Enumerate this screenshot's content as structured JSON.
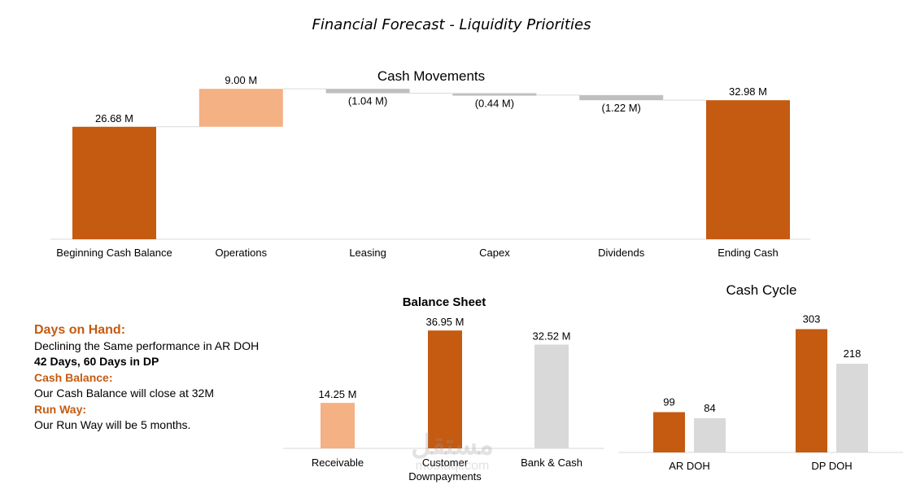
{
  "page": {
    "title": "Financial Forecast - Liquidity Priorities"
  },
  "colors": {
    "dark_orange": "#c55a11",
    "light_orange": "#f4b183",
    "light_gray": "#d9d9d9",
    "mid_gray": "#bfbfbf",
    "connector": "#d9d9d9"
  },
  "notes": {
    "days_heading": "Days on Hand:",
    "days_line1": "Declining the Same performance in AR DOH",
    "days_line2": "42 Days, 60 Days in DP",
    "cash_heading": "Cash Balance:",
    "cash_line": "Our Cash Balance will close at 32M",
    "runway_heading": "Run Way:",
    "runway_line": "Our Run Way will be 5 months."
  },
  "watermark": {
    "main": "مستقل",
    "sub": "mostaql.com"
  },
  "chart_data": [
    {
      "type": "waterfall",
      "title": "Cash Movements",
      "categories": [
        "Beginning Cash Balance",
        "Operations",
        "Leasing",
        "Capex",
        "Dividends",
        "Ending Cash"
      ],
      "values": [
        26.68,
        9.0,
        -1.04,
        -0.44,
        -1.22,
        32.98
      ],
      "labels": [
        "26.68 M",
        "9.00 M",
        "(1.04 M)",
        "(0.44 M)",
        "(1.22 M)",
        "32.98 M"
      ],
      "kinds": [
        "total",
        "increase",
        "decrease",
        "decrease",
        "decrease",
        "total"
      ],
      "ylim": [
        0,
        36
      ],
      "xlabel": "",
      "ylabel": "",
      "grid": false,
      "legend": "none"
    },
    {
      "type": "bar",
      "title": "Balance Sheet",
      "categories": [
        "Receivable",
        "Customer Downpayments",
        "Bank & Cash"
      ],
      "category_lines": [
        [
          "Receivable"
        ],
        [
          "Customer",
          "Downpayments"
        ],
        [
          "Bank & Cash"
        ]
      ],
      "values": [
        14.25,
        36.95,
        32.52
      ],
      "labels": [
        "14.25 M",
        "36.95 M",
        "32.52 M"
      ],
      "colors": [
        "#f4b183",
        "#c55a11",
        "#d9d9d9"
      ],
      "ylim": [
        0,
        40
      ],
      "xlabel": "",
      "ylabel": "",
      "grid": false,
      "legend": "none"
    },
    {
      "type": "bar",
      "title": "Cash Cycle",
      "categories": [
        "AR DOH",
        "DP DOH"
      ],
      "series": [
        {
          "values": [
            99,
            303
          ],
          "color": "#c55a11"
        },
        {
          "values": [
            84,
            218
          ],
          "color": "#d9d9d9"
        }
      ],
      "ylim": [
        0,
        330
      ],
      "xlabel": "",
      "ylabel": "",
      "grid": false,
      "legend": "none"
    }
  ]
}
